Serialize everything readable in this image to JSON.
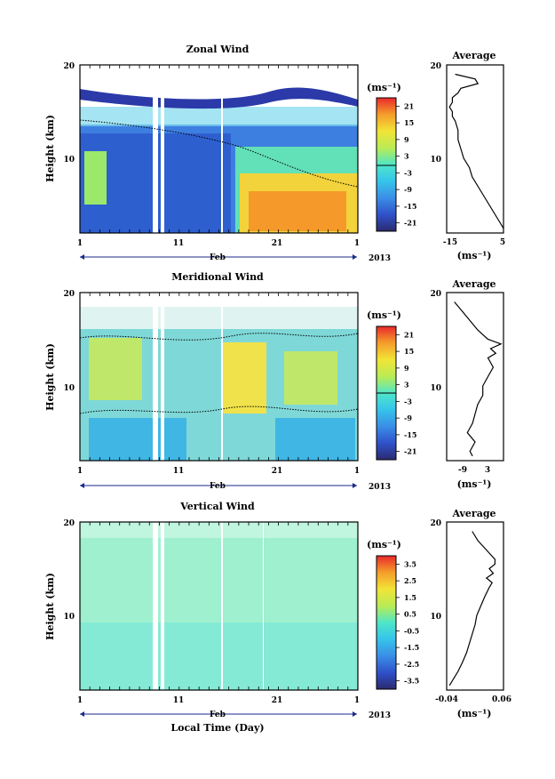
{
  "figure": {
    "x_axis_label": "Local Time (Day)",
    "month_label": "Feb",
    "year_label": "2013",
    "unit_label": "(ms⁻¹)",
    "average_title": "Average"
  },
  "chart_data": [
    {
      "type": "heatmap",
      "title": "Zonal Wind",
      "ylabel": "Height (km)",
      "x_ticks": [
        "1",
        "11",
        "21",
        "1"
      ],
      "y_ticks": [
        "10",
        "20"
      ],
      "ylim": [
        2,
        20
      ],
      "colorbar_ticks": [
        "21",
        "15",
        "9",
        "3",
        "-3",
        "-9",
        "-15",
        "-21"
      ],
      "colorbar_range": [
        -24,
        24
      ],
      "average_profile": {
        "xlim": [
          -15,
          5
        ],
        "x_ticks": [
          "-15",
          "5"
        ],
        "xlabel": "(ms⁻¹)",
        "heights": [
          2.5,
          3,
          4,
          5,
          6,
          7,
          8,
          9,
          10,
          11,
          12,
          13,
          14,
          14.5,
          15,
          15.5,
          16,
          16.5,
          17,
          17.5,
          18,
          18.5,
          19
        ],
        "values": [
          5,
          4,
          2,
          0,
          -2,
          -4,
          -6,
          -7,
          -9,
          -10,
          -11,
          -11,
          -12,
          -13,
          -13,
          -14,
          -13,
          -13,
          -11,
          -10,
          -4,
          -5,
          -12
        ]
      }
    },
    {
      "type": "heatmap",
      "title": "Meridional Wind",
      "ylabel": "Height (km)",
      "x_ticks": [
        "1",
        "11",
        "21",
        "1"
      ],
      "y_ticks": [
        "10",
        "20"
      ],
      "ylim": [
        2,
        20
      ],
      "colorbar_ticks": [
        "21",
        "15",
        "9",
        "3",
        "-3",
        "-9",
        "-15",
        "-21"
      ],
      "colorbar_range": [
        -24,
        24
      ],
      "average_profile": {
        "xlim": [
          -15,
          7
        ],
        "x_ticks": [
          "-9",
          "3"
        ],
        "xlabel": "(ms⁻¹)",
        "heights": [
          2.5,
          3,
          4,
          5,
          6,
          7,
          8,
          9,
          10,
          11,
          12,
          13,
          13.5,
          14,
          14.5,
          15,
          15.5,
          16,
          17,
          18,
          19
        ],
        "values": [
          -5,
          -6,
          -4,
          -7,
          -5,
          -4,
          -3,
          -1,
          -1,
          1,
          3,
          1,
          4,
          2,
          6,
          1,
          -1,
          -3,
          -6,
          -9,
          -12
        ]
      }
    },
    {
      "type": "heatmap",
      "title": "Vertical Wind",
      "ylabel": "Height (km)",
      "x_ticks": [
        "1",
        "11",
        "21",
        "1"
      ],
      "y_ticks": [
        "10",
        "20"
      ],
      "ylim": [
        2,
        20
      ],
      "colorbar_ticks": [
        "3.5",
        "2.5",
        "1.5",
        "0.5",
        "-0.5",
        "-1.5",
        "-2.5",
        "-3.5"
      ],
      "colorbar_range": [
        -4,
        4
      ],
      "average_profile": {
        "xlim": [
          -0.04,
          0.06
        ],
        "x_ticks": [
          "-0.04",
          "0.06"
        ],
        "xlabel": "(ms⁻¹)",
        "heights": [
          2.5,
          3,
          4,
          5,
          6,
          7,
          8,
          9,
          10,
          11,
          12,
          13,
          13.5,
          14,
          14.5,
          15,
          15.5,
          16,
          17,
          18,
          19
        ],
        "values": [
          -0.035,
          -0.03,
          -0.02,
          -0.012,
          -0.005,
          0.0,
          0.005,
          0.01,
          0.013,
          0.02,
          0.027,
          0.035,
          0.04,
          0.03,
          0.042,
          0.035,
          0.045,
          0.045,
          0.03,
          0.015,
          0.005
        ]
      }
    }
  ]
}
